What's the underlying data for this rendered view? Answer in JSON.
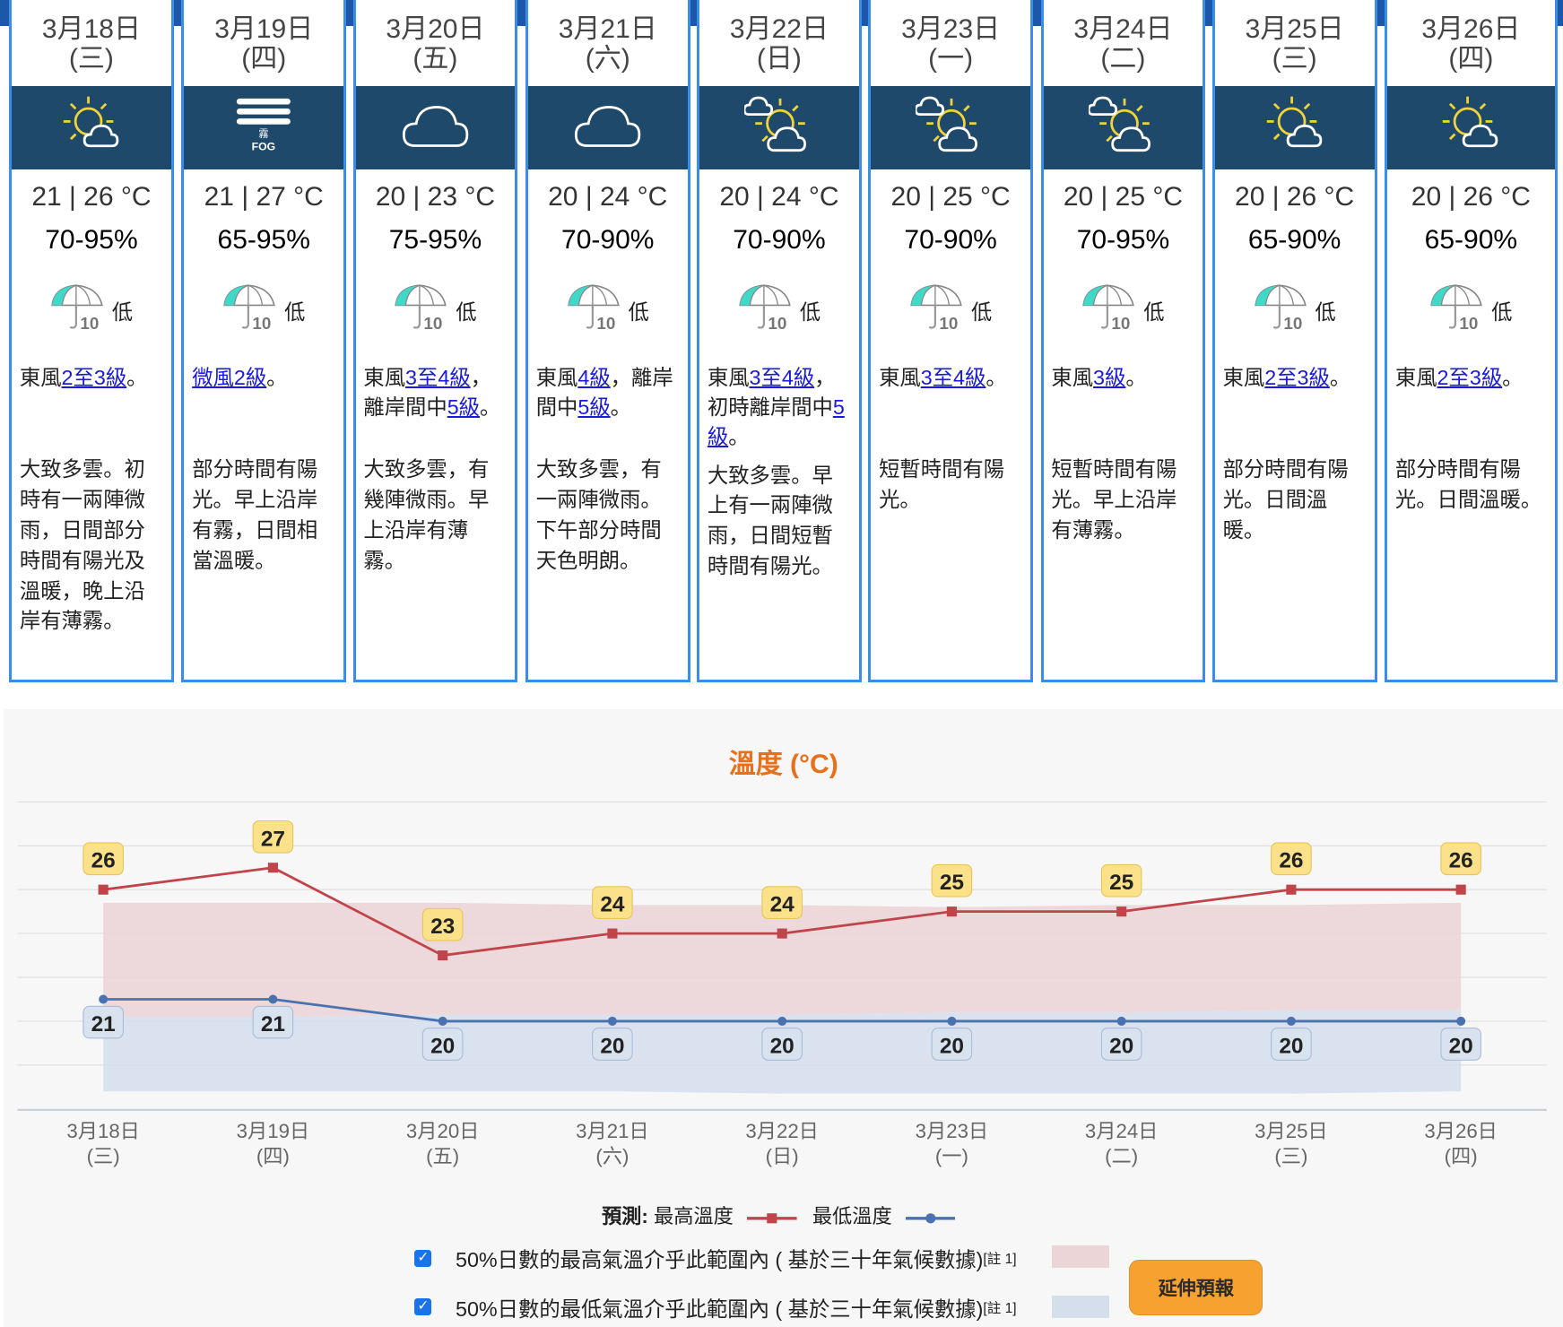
{
  "colors": {
    "header": "#1c57a8",
    "card_border": "#3a8ee6",
    "icon_band": "#1f496b",
    "link": "#1a1adc",
    "max_line": "#c0454a",
    "min_line": "#4a72b0",
    "max_band": "#ebd5d7",
    "min_band": "#d5dfec",
    "title": "#e8701a",
    "button": "#f7a131"
  },
  "days": [
    {
      "date": "3月18日",
      "weekday": "(三)",
      "icon": "sunny-periods-icon",
      "temp": "21 | 26 °C",
      "humidity": "70-95%",
      "psr": "低",
      "psr_icon": "umbrella-10-icon",
      "wind": [
        {
          "t": "東風"
        },
        {
          "t": "2至3級",
          "link": true
        },
        {
          "t": "。"
        }
      ],
      "desc": "大致多雲。初時有一兩陣微雨，日間部分時間有陽光及溫暖，晚上沿岸有薄霧。"
    },
    {
      "date": "3月19日",
      "weekday": "(四)",
      "icon": "fog-icon",
      "icon_text": "霧",
      "icon_text2": "FOG",
      "temp": "21 | 27 °C",
      "humidity": "65-95%",
      "psr": "低",
      "psr_icon": "umbrella-10-icon",
      "wind": [
        {
          "t": "微風2級",
          "link": true
        },
        {
          "t": "。"
        }
      ],
      "desc": "部分時間有陽光。早上沿岸有霧，日間相當溫暖。"
    },
    {
      "date": "3月20日",
      "weekday": "(五)",
      "icon": "cloudy-icon",
      "temp": "20 | 23 °C",
      "humidity": "75-95%",
      "psr": "低",
      "psr_icon": "umbrella-10-icon",
      "wind": [
        {
          "t": "東風"
        },
        {
          "t": "3至4級",
          "link": true
        },
        {
          "t": "，離岸間中"
        },
        {
          "t": "5級",
          "link": true
        },
        {
          "t": "。"
        }
      ],
      "desc": "大致多雲，有幾陣微雨。早上沿岸有薄霧。"
    },
    {
      "date": "3月21日",
      "weekday": "(六)",
      "icon": "cloudy-icon",
      "temp": "20 | 24 °C",
      "humidity": "70-90%",
      "psr": "低",
      "psr_icon": "umbrella-10-icon",
      "wind": [
        {
          "t": "東風"
        },
        {
          "t": "4級",
          "link": true
        },
        {
          "t": "，離岸間中"
        },
        {
          "t": "5級",
          "link": true
        },
        {
          "t": "。"
        }
      ],
      "desc": "大致多雲，有一兩陣微雨。下午部分時間天色明朗。"
    },
    {
      "date": "3月22日",
      "weekday": "(日)",
      "icon": "sunny-intervals-icon",
      "temp": "20 | 24 °C",
      "humidity": "70-90%",
      "psr": "低",
      "psr_icon": "umbrella-10-icon",
      "wind": [
        {
          "t": "東風"
        },
        {
          "t": "3至4級",
          "link": true
        },
        {
          "t": "，初時離岸間中"
        },
        {
          "t": "5級",
          "link": true
        },
        {
          "t": "。"
        }
      ],
      "desc": "大致多雲。早上有一兩陣微雨，日間短暫時間有陽光。"
    },
    {
      "date": "3月23日",
      "weekday": "(一)",
      "icon": "sunny-intervals-icon",
      "temp": "20 | 25 °C",
      "humidity": "70-90%",
      "psr": "低",
      "psr_icon": "umbrella-10-icon",
      "wind": [
        {
          "t": "東風"
        },
        {
          "t": "3至4級",
          "link": true
        },
        {
          "t": "。"
        }
      ],
      "desc": "短暫時間有陽光。"
    },
    {
      "date": "3月24日",
      "weekday": "(二)",
      "icon": "sunny-intervals-icon",
      "temp": "20 | 25 °C",
      "humidity": "70-95%",
      "psr": "低",
      "psr_icon": "umbrella-10-icon",
      "wind": [
        {
          "t": "東風"
        },
        {
          "t": "3級",
          "link": true
        },
        {
          "t": "。"
        }
      ],
      "desc": "短暫時間有陽光。早上沿岸有薄霧。"
    },
    {
      "date": "3月25日",
      "weekday": "(三)",
      "icon": "sunny-periods-icon",
      "temp": "20 | 26 °C",
      "humidity": "65-90%",
      "psr": "低",
      "psr_icon": "umbrella-10-icon",
      "wind": [
        {
          "t": "東風"
        },
        {
          "t": "2至3級",
          "link": true
        },
        {
          "t": "。"
        }
      ],
      "desc": "部分時間有陽光。日間溫暖。"
    },
    {
      "date": "3月26日",
      "weekday": "(四)",
      "icon": "sunny-periods-icon",
      "temp": "20 | 26 °C",
      "humidity": "65-90%",
      "psr": "低",
      "psr_icon": "umbrella-10-icon",
      "wind": [
        {
          "t": "東風"
        },
        {
          "t": "2至3級",
          "link": true
        },
        {
          "t": "。"
        }
      ],
      "desc": "部分時間有陽光。日間溫暖。"
    }
  ],
  "chart_data": {
    "type": "line",
    "title": "溫度 (°C)",
    "categories": [
      "3月18日",
      "3月19日",
      "3月20日",
      "3月21日",
      "3月22日",
      "3月23日",
      "3月24日",
      "3月25日",
      "3月26日"
    ],
    "category_sub": [
      "(三)",
      "(四)",
      "(五)",
      "(六)",
      "(日)",
      "(一)",
      "(二)",
      "(三)",
      "(四)"
    ],
    "ylim": [
      16,
      30
    ],
    "grid": true,
    "series": [
      {
        "name": "最高溫度",
        "values": [
          26,
          27,
          23,
          24,
          24,
          25,
          25,
          26,
          26
        ],
        "color": "#c0454a",
        "marker": "square"
      },
      {
        "name": "最低溫度",
        "values": [
          21,
          21,
          20,
          20,
          20,
          20,
          20,
          20,
          20
        ],
        "color": "#4a72b0",
        "marker": "circle"
      }
    ],
    "bands": [
      {
        "name": "50%日數的最高氣溫介乎此範圍內 ( 基於三十年氣候數據)",
        "lower": [
          20.2,
          20.2,
          20.3,
          20.3,
          20.3,
          20.4,
          20.4,
          20.5,
          20.5
        ],
        "upper": [
          25.4,
          25.4,
          25.4,
          25.3,
          25.3,
          25.2,
          25.3,
          25.3,
          25.4
        ],
        "color": "#ebd5d7"
      },
      {
        "name": "50%日數的最低氣溫介乎此範圍內 ( 基於三十年氣候數據)",
        "lower": [
          16.8,
          16.8,
          16.8,
          16.8,
          16.7,
          16.7,
          16.7,
          16.7,
          16.8
        ],
        "upper": [
          20.2,
          20.2,
          20.3,
          20.3,
          20.3,
          20.4,
          20.4,
          20.5,
          20.5
        ],
        "color": "#d5dfec"
      }
    ],
    "legend": {
      "prefix": "預測:",
      "max_label": "最高溫度",
      "min_label": "最低溫度",
      "placement": "bottom"
    }
  },
  "checks": [
    {
      "label": "50%日數的最高氣溫介乎此範圍內 ( 基於三十年氣候數據)",
      "note": "[註 1]",
      "checked": true
    },
    {
      "label": "50%日數的最低氣溫介乎此範圍內 ( 基於三十年氣候數據)",
      "note": "[註 1]",
      "checked": true
    }
  ],
  "extended_button": "延伸預報"
}
